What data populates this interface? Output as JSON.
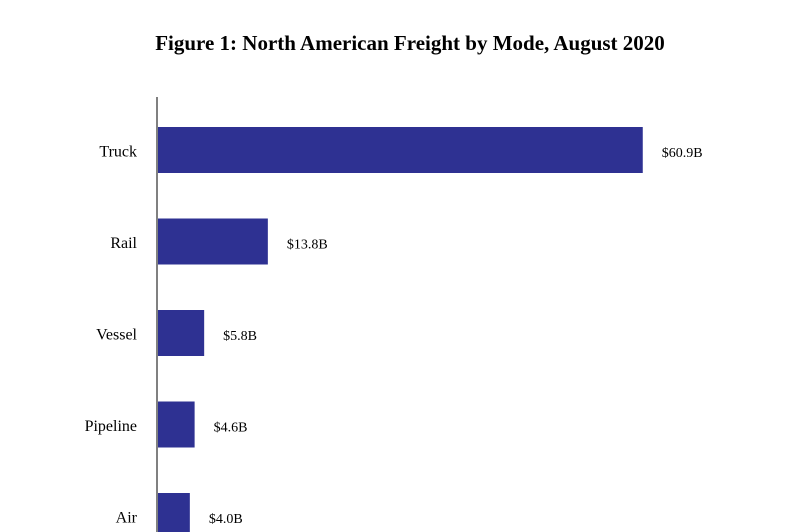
{
  "chart_data": {
    "type": "bar",
    "orientation": "horizontal",
    "title": "Figure 1: North American Freight by Mode, August 2020",
    "categories": [
      "Truck",
      "Rail",
      "Vessel",
      "Pipeline",
      "Air"
    ],
    "values": [
      60.9,
      13.8,
      5.8,
      4.6,
      4.0
    ],
    "value_labels": [
      "$60.9B",
      "$13.8B",
      "$5.8B",
      "$4.6B",
      "$4.0B"
    ],
    "color": "#2e3192"
  }
}
